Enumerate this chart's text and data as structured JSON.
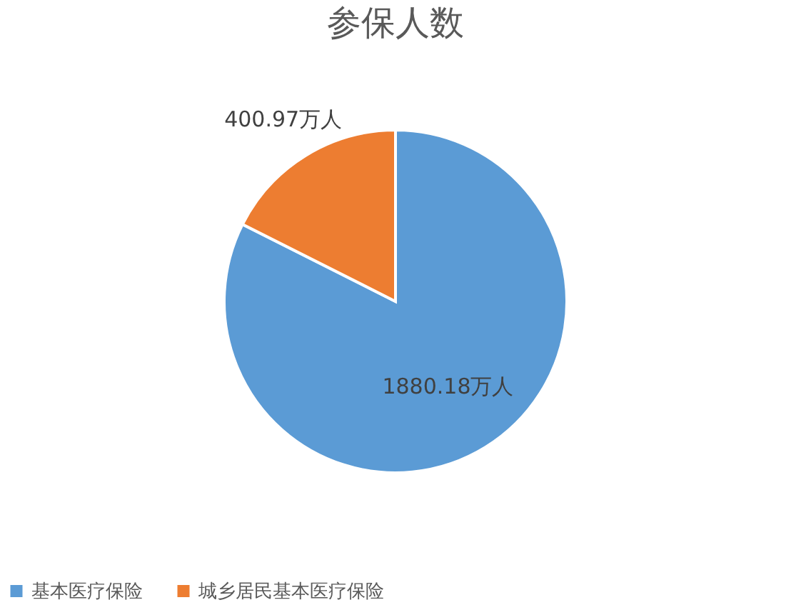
{
  "chart_data": {
    "type": "pie",
    "title": "参保人数",
    "categories": [
      "基本医疗保险",
      "城乡居民基本医疗保险"
    ],
    "values": [
      1880.18,
      400.97
    ],
    "colors": [
      "#5b9bd5",
      "#ed7d31"
    ],
    "value_labels": [
      "1880.18万人",
      "400.97万人"
    ],
    "legend": "bottom"
  }
}
